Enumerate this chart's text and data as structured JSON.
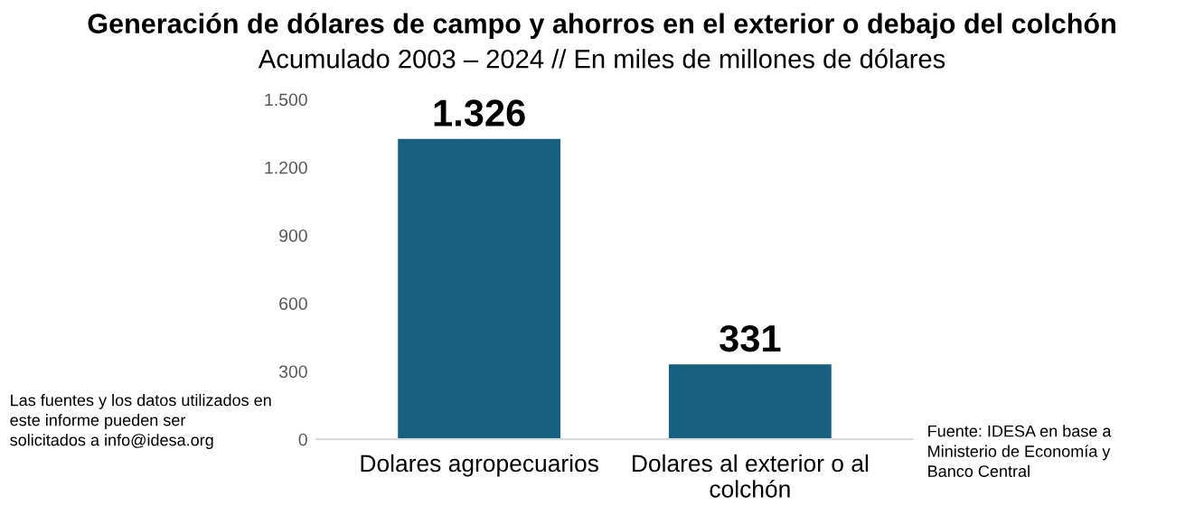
{
  "chart_data": {
    "type": "bar",
    "title": "Generación de dólares de campo y ahorros en el exterior o debajo del colchón",
    "subtitle": "Acumulado 2003 – 2024 // En miles de millones de dólares",
    "categories": [
      "Dolares agropecuarios",
      "Dolares al exterior o al\ncolchón"
    ],
    "values": [
      1326,
      331
    ],
    "color": "#17607f",
    "value_labels": [
      "1.326",
      "331"
    ],
    "ylim": [
      0,
      1500
    ],
    "yticks": [
      0,
      300,
      600,
      900,
      {
        "value": 1200,
        "label": "1.200"
      },
      {
        "value": 1500,
        "label": "1.500"
      }
    ],
    "grid": false,
    "annotations": [
      "Las fuentes y los datos utilizados en\neste informe pueden ser\nsolicitados a info@idesa.org",
      "Fuente: IDESA en base a\nMinisterio de Economía y\nBanco Central"
    ]
  }
}
